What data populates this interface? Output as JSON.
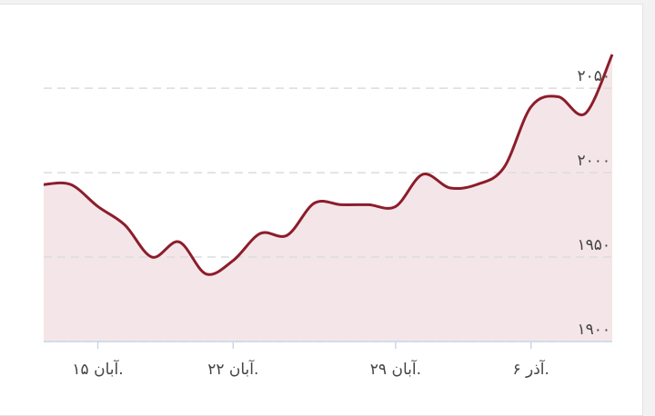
{
  "chart_data": {
    "type": "line",
    "x": [
      0,
      1,
      2,
      3,
      4,
      5,
      6,
      7,
      8,
      9,
      10,
      11,
      12,
      13,
      14,
      15,
      16,
      17,
      18,
      19,
      20,
      21
    ],
    "series": [
      {
        "color": "#8c1d2b",
        "values": [
          1993,
          1993,
          1980,
          1969,
          1950,
          1959,
          1940,
          1948,
          1964,
          1963,
          1982,
          1981,
          1981,
          1980,
          1999,
          1991,
          1993,
          2003,
          2039,
          2045,
          2035,
          2070
        ]
      }
    ],
    "area_color": "#f4e6e8",
    "xlim": [
      0,
      21
    ],
    "xticks": [
      {
        "value": 2,
        "label": "آبان ۱۵."
      },
      {
        "value": 7,
        "label": "آبان ۲۲."
      },
      {
        "value": 13,
        "label": "آبان ۲۹."
      },
      {
        "value": 18,
        "label": "آذر ۶."
      }
    ],
    "ylim": [
      1900,
      2070
    ],
    "yticks": [
      {
        "value": 1900,
        "label": "۱۹۰۰"
      },
      {
        "value": 1950,
        "label": "۱۹۵۰"
      },
      {
        "value": 2000,
        "label": "۲۰۰۰"
      },
      {
        "value": 2050,
        "label": "۲۰۵۰"
      }
    ],
    "grid": true
  }
}
